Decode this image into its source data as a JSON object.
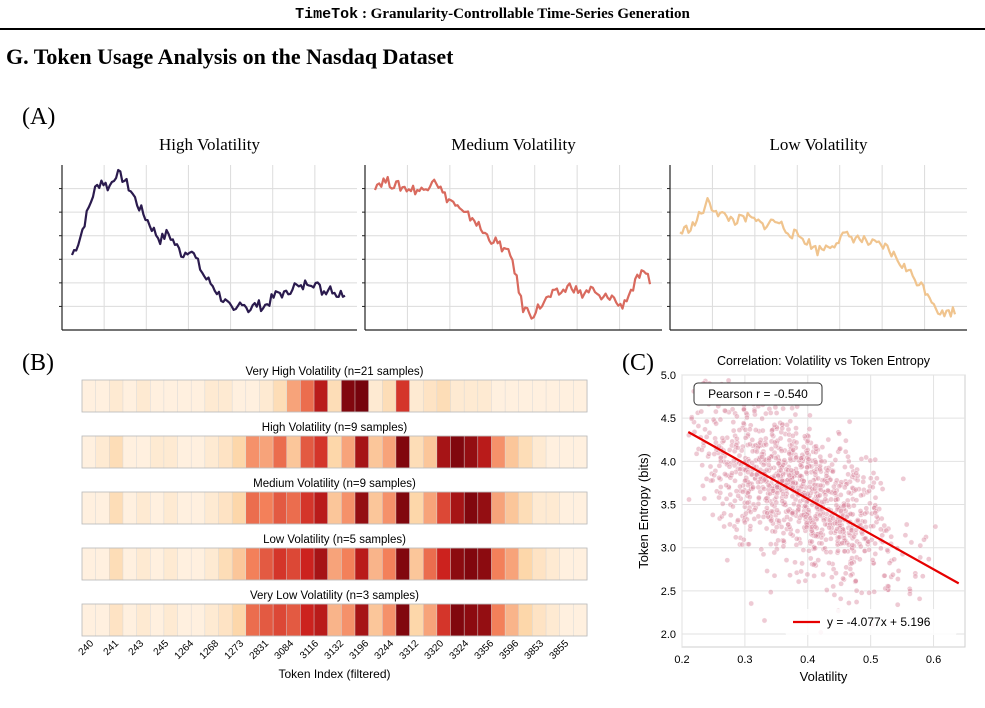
{
  "header": {
    "title_mono": "TimeTok",
    "title_rest": " : Granularity-Controllable Time-Series Generation"
  },
  "section_title": "G. Token Usage Analysis on the Nasdaq Dataset",
  "panels": {
    "a": "(A)",
    "b": "(B)",
    "c": "(C)"
  },
  "colors": {
    "high": "#2b1b4e",
    "medium": "#d96a5e",
    "low": "#f0c48e",
    "scatter": "#d98a9f",
    "fit": "#e60000"
  },
  "chart_data": [
    {
      "type": "line",
      "panel": "A",
      "series": [
        {
          "name": "High Volatility",
          "values": [
            0.45,
            0.55,
            0.72,
            0.88,
            0.95,
            0.9,
            1.0,
            0.96,
            0.88,
            0.78,
            0.7,
            0.62,
            0.55,
            0.6,
            0.52,
            0.45,
            0.5,
            0.4,
            0.3,
            0.25,
            0.18,
            0.12,
            0.05,
            0.15,
            0.08,
            0.12,
            0.1,
            0.15,
            0.2,
            0.18,
            0.25,
            0.22,
            0.28,
            0.26,
            0.2,
            0.24,
            0.18,
            0.2
          ]
        },
        {
          "name": "Medium Volatility",
          "values": [
            0.92,
            0.95,
            0.92,
            0.9,
            0.89,
            0.88,
            0.98,
            0.85,
            0.8,
            0.72,
            0.7,
            0.6,
            0.55,
            0.5,
            0.42,
            0.1,
            0.05,
            0.12,
            0.18,
            0.2,
            0.25,
            0.18,
            0.22,
            0.15,
            0.18,
            0.1,
            0.2,
            0.32,
            0.28
          ]
        },
        {
          "name": "Low Volatility",
          "values": [
            0.6,
            0.65,
            0.8,
            0.72,
            0.68,
            0.7,
            0.65,
            0.68,
            0.6,
            0.56,
            0.48,
            0.52,
            0.58,
            0.56,
            0.52,
            0.5,
            0.4,
            0.3,
            0.2,
            0.05,
            0.08
          ]
        }
      ]
    },
    {
      "type": "heatmap",
      "panel": "B",
      "xlabel": "Token Index (filtered)",
      "tick_labels": [
        "240",
        "241",
        "243",
        "245",
        "1264",
        "1268",
        "1273",
        "2831",
        "3084",
        "3116",
        "3132",
        "3196",
        "3244",
        "3312",
        "3320",
        "3324",
        "3356",
        "3596",
        "3853",
        "3855"
      ],
      "rows": [
        {
          "title": "Very High Volatility (n=21 samples)",
          "values": [
            0.05,
            0.05,
            0.1,
            0.05,
            0.1,
            0.05,
            0.05,
            0.05,
            0.05,
            0.1,
            0.1,
            0.05,
            0.05,
            0.1,
            0.2,
            0.4,
            0.55,
            0.8,
            0.2,
            0.95,
            0.98,
            0.1,
            0.2,
            0.7,
            0.1,
            0.15,
            0.2,
            0.1,
            0.1,
            0.1,
            0.05,
            0.05,
            0.05,
            0.05,
            0.05,
            0.05,
            0.05
          ]
        },
        {
          "title": "High Volatility (n=9 samples)",
          "values": [
            0.05,
            0.1,
            0.2,
            0.05,
            0.05,
            0.1,
            0.1,
            0.05,
            0.05,
            0.1,
            0.15,
            0.25,
            0.45,
            0.4,
            0.55,
            0.3,
            0.6,
            0.7,
            0.25,
            0.4,
            0.85,
            0.3,
            0.4,
            0.95,
            0.2,
            0.3,
            0.85,
            0.95,
            0.9,
            0.8,
            0.45,
            0.3,
            0.2,
            0.1,
            0.05,
            0.05,
            0.05
          ]
        },
        {
          "title": "Medium Volatility (n=9 samples)",
          "values": [
            0.05,
            0.05,
            0.2,
            0.05,
            0.1,
            0.05,
            0.1,
            0.05,
            0.05,
            0.1,
            0.15,
            0.25,
            0.55,
            0.5,
            0.6,
            0.55,
            0.7,
            0.8,
            0.3,
            0.45,
            0.9,
            0.3,
            0.45,
            0.95,
            0.25,
            0.4,
            0.65,
            0.85,
            0.95,
            0.9,
            0.4,
            0.3,
            0.2,
            0.1,
            0.1,
            0.05,
            0.05
          ]
        },
        {
          "title": "Low Volatility (n=5 samples)",
          "values": [
            0.05,
            0.05,
            0.2,
            0.05,
            0.1,
            0.05,
            0.1,
            0.05,
            0.05,
            0.1,
            0.2,
            0.3,
            0.5,
            0.6,
            0.7,
            0.65,
            0.75,
            0.85,
            0.4,
            0.5,
            0.8,
            0.35,
            0.5,
            0.95,
            0.3,
            0.55,
            0.75,
            0.92,
            0.95,
            0.92,
            0.5,
            0.4,
            0.25,
            0.15,
            0.1,
            0.05,
            0.05
          ]
        },
        {
          "title": "Very Low Volatility (n=3 samples)",
          "values": [
            0.05,
            0.05,
            0.15,
            0.05,
            0.1,
            0.05,
            0.1,
            0.05,
            0.05,
            0.1,
            0.15,
            0.25,
            0.55,
            0.6,
            0.65,
            0.6,
            0.75,
            0.8,
            0.35,
            0.45,
            0.85,
            0.3,
            0.45,
            0.95,
            0.25,
            0.4,
            0.7,
            0.95,
            0.92,
            0.9,
            0.5,
            0.35,
            0.25,
            0.15,
            0.1,
            0.05,
            0.05
          ]
        }
      ],
      "series_names": [
        "High Volatility",
        "Medium Volatility",
        "Low Volatility"
      ]
    },
    {
      "type": "scatter",
      "panel": "C",
      "title": "Correlation: Volatility vs Token Entropy",
      "xlabel": "Volatility",
      "ylabel": "Token Entropy (bits)",
      "xlim": [
        0.2,
        0.65
      ],
      "ylim": [
        1.85,
        5.0
      ],
      "xticks": [
        0.2,
        0.3,
        0.4,
        0.5,
        0.6
      ],
      "yticks": [
        2.0,
        2.5,
        3.0,
        3.5,
        4.0,
        4.5,
        5.0
      ],
      "annotation": "Pearson r = -0.540",
      "legend": "y = -4.077x + 5.196",
      "fit": {
        "slope": -4.077,
        "intercept": 5.196,
        "x": [
          0.21,
          0.64
        ]
      },
      "points_summary": {
        "count": 1200,
        "x_center": 0.38,
        "y_center": 3.65
      }
    }
  ]
}
